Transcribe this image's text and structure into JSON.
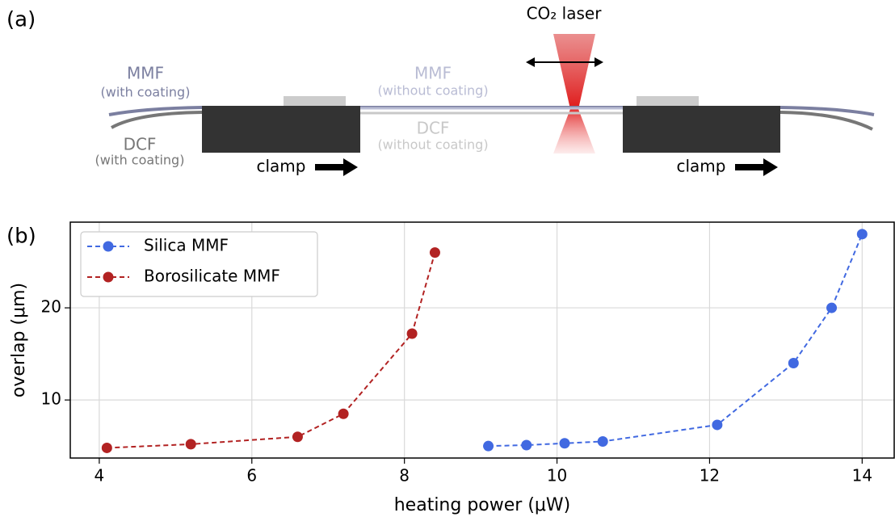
{
  "diagram": {
    "panel": "(a)",
    "laser": "CO₂ laser",
    "coated_mmf": {
      "name": "MMF",
      "note": "(with coating)"
    },
    "coated_dcf": {
      "name": "DCF",
      "note": "(with coating)"
    },
    "bare_mmf": {
      "name": "MMF",
      "note": "(without coating)"
    },
    "bare_dcf": {
      "name": "DCF",
      "note": "(without coating)"
    },
    "clamps": [
      "clamp",
      "clamp"
    ]
  },
  "chart_panel": "(b)",
  "chart_data": {
    "type": "line",
    "x_label": "heating power (μW)",
    "y_label": "overlap (μm)",
    "series": [
      {
        "name": "Silica MMF",
        "color": "#4169e1",
        "x": [
          9.1,
          9.6,
          10.1,
          10.6,
          12.1,
          13.1,
          13.6,
          14.0
        ],
        "values": [
          5.0,
          5.1,
          5.3,
          5.5,
          7.3,
          14.0,
          20.0,
          28.0
        ]
      },
      {
        "name": "Borosilicate MMF",
        "color": "#b22222",
        "x": [
          4.1,
          5.2,
          6.6,
          7.2,
          8.1,
          8.4
        ],
        "values": [
          4.8,
          5.2,
          6.0,
          8.5,
          17.2,
          26.0
        ]
      }
    ],
    "xlim": [
      3.62,
      14.42
    ],
    "xticks": [
      4,
      6,
      8,
      10,
      12,
      14
    ],
    "ylim": [
      3.7,
      29.3
    ],
    "yticks": [
      10,
      20
    ],
    "grid": true,
    "legend": "upper left"
  }
}
